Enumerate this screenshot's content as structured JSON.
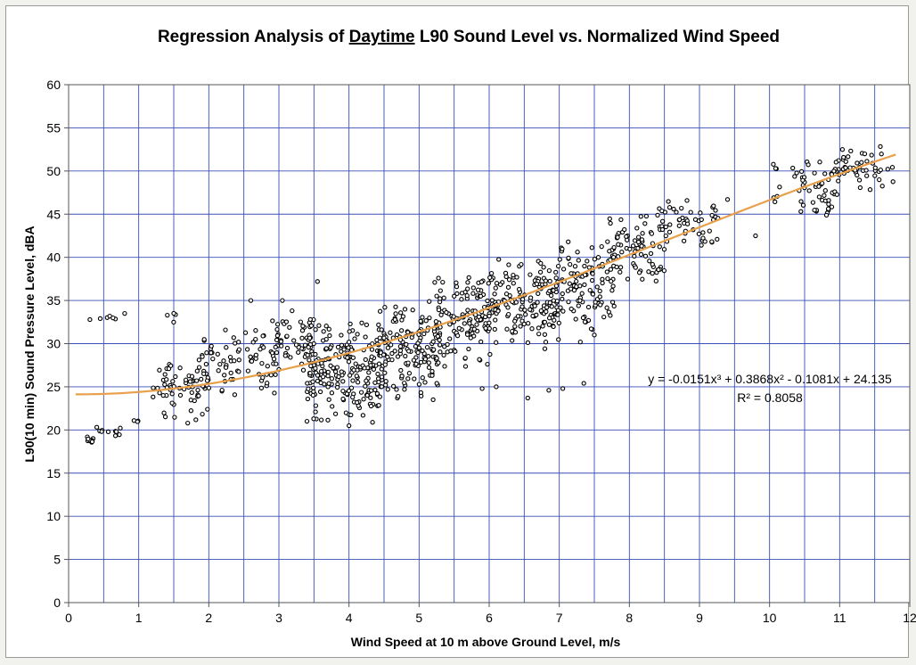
{
  "chart_data": {
    "type": "scatter",
    "title_parts": [
      "Regression Analysis of ",
      "Daytime",
      " L90 Sound Level vs. Normalized Wind Speed"
    ],
    "xlabel": "Wind Speed at 10 m above Ground Level, m/s",
    "ylabel": "L90(10 min) Sound Pressure Level, dBA",
    "xlim": [
      0,
      12
    ],
    "ylim": [
      0,
      60
    ],
    "x_ticks": [
      0,
      1,
      2,
      3,
      4,
      5,
      6,
      7,
      8,
      9,
      10,
      11,
      12
    ],
    "y_ticks": [
      0,
      5,
      10,
      15,
      20,
      25,
      30,
      35,
      40,
      45,
      50,
      55,
      60
    ],
    "x_minor_step": 0.5,
    "y_minor_step": 5,
    "grid": true,
    "legend": "none",
    "colors": {
      "points": "#000000",
      "trendline": "#e8a04a",
      "grid": "#3a4fb5",
      "background": "#ffffff"
    },
    "trendline": {
      "type": "polynomial",
      "coefficients": [
        -0.0151,
        0.3868,
        -0.1081,
        24.135
      ],
      "x_range": [
        0.1,
        11.8
      ],
      "equation": "y = -0.0151x³ + 0.3868x² - 0.1081x + 24.135",
      "r_squared": "R² = 0.8058"
    },
    "clusters": [
      {
        "x0": 0.25,
        "x1": 0.35,
        "y_lo": 18.0,
        "y_hi": 19.5,
        "n": 10
      },
      {
        "x0": 0.3,
        "x1": 0.75,
        "y_lo": 19.0,
        "y_hi": 21.0,
        "n": 10
      },
      {
        "x0": 0.3,
        "x1": 0.9,
        "y_lo": 32.5,
        "y_hi": 33.5,
        "n": 6
      },
      {
        "x0": 0.8,
        "x1": 1.0,
        "y_lo": 20.5,
        "y_hi": 22.0,
        "n": 3
      },
      {
        "x0": 1.2,
        "x1": 2.0,
        "y_lo": 20.5,
        "y_hi": 29.0,
        "n": 60
      },
      {
        "x0": 1.4,
        "x1": 1.6,
        "y_lo": 32.0,
        "y_hi": 34.5,
        "n": 4
      },
      {
        "x0": 1.9,
        "x1": 3.0,
        "y_lo": 23.5,
        "y_hi": 33.0,
        "n": 85
      },
      {
        "x0": 2.9,
        "x1": 3.5,
        "y_lo": 25.5,
        "y_hi": 34.0,
        "n": 55
      },
      {
        "x0": 3.4,
        "x1": 4.5,
        "y_lo": 20.5,
        "y_hi": 33.5,
        "n": 210
      },
      {
        "x0": 4.4,
        "x1": 5.3,
        "y_lo": 23.0,
        "y_hi": 35.5,
        "n": 150
      },
      {
        "x0": 5.2,
        "x1": 6.1,
        "y_lo": 27.0,
        "y_hi": 38.5,
        "n": 140
      },
      {
        "x0": 6.0,
        "x1": 7.0,
        "y_lo": 29.0,
        "y_hi": 40.0,
        "n": 150
      },
      {
        "x0": 6.9,
        "x1": 7.8,
        "y_lo": 31.0,
        "y_hi": 42.5,
        "n": 110
      },
      {
        "x0": 7.7,
        "x1": 8.5,
        "y_lo": 36.5,
        "y_hi": 45.5,
        "n": 75
      },
      {
        "x0": 8.4,
        "x1": 9.3,
        "y_lo": 40.5,
        "y_hi": 47.0,
        "n": 55
      },
      {
        "x0": 10.0,
        "x1": 10.5,
        "y_lo": 44.5,
        "y_hi": 52.0,
        "n": 15
      },
      {
        "x0": 10.4,
        "x1": 11.0,
        "y_lo": 44.5,
        "y_hi": 51.5,
        "n": 45
      },
      {
        "x0": 10.9,
        "x1": 11.6,
        "y_lo": 47.0,
        "y_hi": 53.5,
        "n": 45
      },
      {
        "x0": 11.6,
        "x1": 11.8,
        "y_lo": 47.0,
        "y_hi": 53.0,
        "n": 4
      }
    ],
    "points": [
      [
        0.8,
        33.5
      ],
      [
        1.35,
        24.0
      ],
      [
        1.7,
        20.8
      ],
      [
        2.6,
        35.0
      ],
      [
        3.05,
        35.0
      ],
      [
        3.55,
        37.2
      ],
      [
        4.0,
        20.5
      ],
      [
        5.2,
        23.5
      ],
      [
        5.9,
        24.8
      ],
      [
        6.1,
        25.0
      ],
      [
        6.55,
        23.7
      ],
      [
        6.85,
        24.6
      ],
      [
        7.05,
        24.8
      ],
      [
        7.35,
        25.4
      ],
      [
        9.4,
        46.7
      ],
      [
        9.8,
        42.5
      ],
      [
        7.5,
        31.0
      ],
      [
        7.3,
        30.2
      ]
    ]
  }
}
